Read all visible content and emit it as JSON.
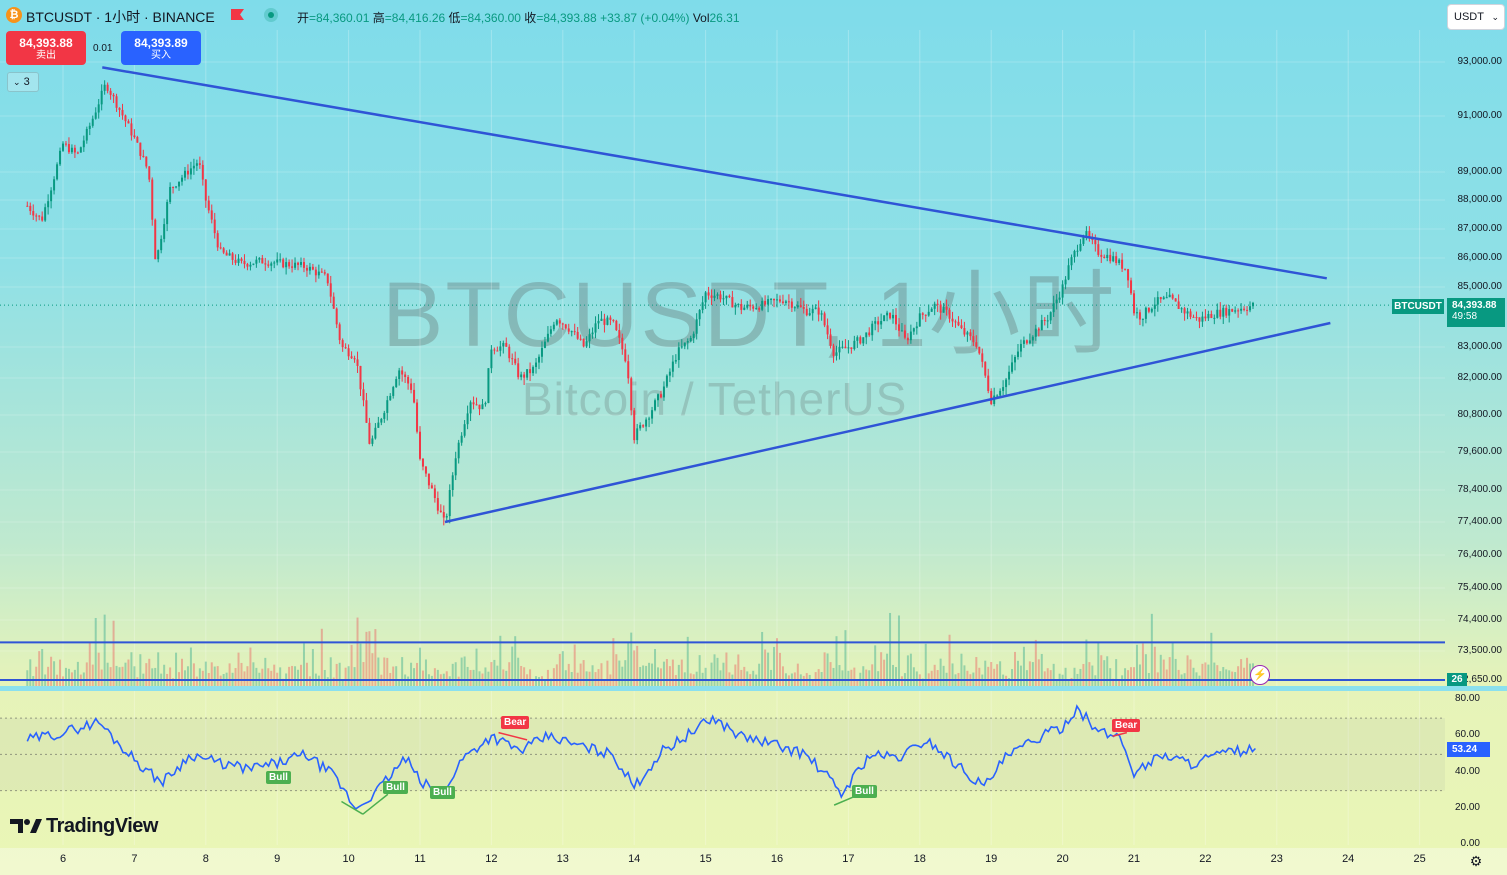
{
  "header": {
    "symbol_title": "BTCUSDT · 1小时 · BINANCE",
    "ohlc": {
      "open_label": "开",
      "open": "=84,360.01",
      "high_label": "高",
      "high": "=84,416.26",
      "low_label": "低",
      "low": "=84,360.00",
      "close_label": "收",
      "close": "=84,393.88",
      "change": "+33.87 (+0.04%)",
      "vol_label": "Vol",
      "vol": "26.31"
    },
    "sell_price": "84,393.88",
    "sell_label": "卖出",
    "spread": "0.01",
    "buy_price": "84,393.89",
    "buy_label": "买入",
    "indicators_toggle": "3",
    "currency_select": "USDT"
  },
  "watermark": {
    "line1": "BTCUSDT, 1小时",
    "line2": "Bitcoin / TetherUS"
  },
  "price_axis": {
    "labels": [
      "93,000.00",
      "91,000.00",
      "89,000.00",
      "88,000.00",
      "87,000.00",
      "86,000.00",
      "85,000.00",
      "83,000.00",
      "82,000.00",
      "80,800.00",
      "79,600.00",
      "78,400.00",
      "77,400.00",
      "76,400.00",
      "75,400.00",
      "74,400.00",
      "73,500.00",
      "72,650.00"
    ],
    "last_price_symbol": "BTCUSDT",
    "last_price": "84,393.88",
    "countdown": "49:58",
    "volume_tag": "26"
  },
  "rsi_axis": {
    "labels": [
      "80.00",
      "60.00",
      "40.00",
      "20.00",
      "0.00"
    ],
    "current": "53.24",
    "signals": [
      "Bull",
      "Bull",
      "Bull",
      "Bear",
      "Bull",
      "Bear"
    ]
  },
  "time_axis": {
    "labels": [
      "6",
      "7",
      "8",
      "9",
      "10",
      "11",
      "12",
      "13",
      "14",
      "15",
      "16",
      "17",
      "18",
      "19",
      "20",
      "21",
      "22",
      "23",
      "24",
      "25"
    ]
  },
  "branding": {
    "logo_text": "TradingView"
  },
  "colors": {
    "up": "#089981",
    "down": "#f23645",
    "trendline": "#2f54d6",
    "rsi": "#2962ff"
  },
  "chart_data": {
    "type": "candlestick",
    "symbol": "BTCUSDT",
    "interval": "1小时",
    "x_range_days": [
      "6",
      "25"
    ],
    "ylim": [
      72650,
      93500
    ],
    "close_path": [
      {
        "day": 5.5,
        "close": 87800
      },
      {
        "day": 5.7,
        "close": 87300
      },
      {
        "day": 5.85,
        "close": 88600
      },
      {
        "day": 6.0,
        "close": 90000
      },
      {
        "day": 6.2,
        "close": 89600
      },
      {
        "day": 6.4,
        "close": 90800
      },
      {
        "day": 6.6,
        "close": 92200
      },
      {
        "day": 6.8,
        "close": 91200
      },
      {
        "day": 7.0,
        "close": 90200
      },
      {
        "day": 7.2,
        "close": 89000
      },
      {
        "day": 7.3,
        "close": 85800
      },
      {
        "day": 7.5,
        "close": 88400
      },
      {
        "day": 7.7,
        "close": 88900
      },
      {
        "day": 7.9,
        "close": 89400
      },
      {
        "day": 8.0,
        "close": 88000
      },
      {
        "day": 8.2,
        "close": 86200
      },
      {
        "day": 8.5,
        "close": 85800
      },
      {
        "day": 8.8,
        "close": 85900
      },
      {
        "day": 9.1,
        "close": 85800
      },
      {
        "day": 9.4,
        "close": 85700
      },
      {
        "day": 9.7,
        "close": 85300
      },
      {
        "day": 9.9,
        "close": 83000
      },
      {
        "day": 10.1,
        "close": 82700
      },
      {
        "day": 10.3,
        "close": 79800
      },
      {
        "day": 10.5,
        "close": 81000
      },
      {
        "day": 10.7,
        "close": 82300
      },
      {
        "day": 10.9,
        "close": 81600
      },
      {
        "day": 11.0,
        "close": 79300
      },
      {
        "day": 11.2,
        "close": 78200
      },
      {
        "day": 11.35,
        "close": 77300
      },
      {
        "day": 11.5,
        "close": 79500
      },
      {
        "day": 11.7,
        "close": 81300
      },
      {
        "day": 11.9,
        "close": 81000
      },
      {
        "day": 12.0,
        "close": 83000
      },
      {
        "day": 12.2,
        "close": 83000
      },
      {
        "day": 12.4,
        "close": 82000
      },
      {
        "day": 12.6,
        "close": 82300
      },
      {
        "day": 12.8,
        "close": 83400
      },
      {
        "day": 12.9,
        "close": 84000
      },
      {
        "day": 13.1,
        "close": 83600
      },
      {
        "day": 13.3,
        "close": 83000
      },
      {
        "day": 13.5,
        "close": 83900
      },
      {
        "day": 13.7,
        "close": 83800
      },
      {
        "day": 13.9,
        "close": 82500
      },
      {
        "day": 14.0,
        "close": 80100
      },
      {
        "day": 14.2,
        "close": 80800
      },
      {
        "day": 14.4,
        "close": 81600
      },
      {
        "day": 14.6,
        "close": 82800
      },
      {
        "day": 14.8,
        "close": 83300
      },
      {
        "day": 15.0,
        "close": 84800
      },
      {
        "day": 15.2,
        "close": 84700
      },
      {
        "day": 15.5,
        "close": 84300
      },
      {
        "day": 15.8,
        "close": 84400
      },
      {
        "day": 16.1,
        "close": 84600
      },
      {
        "day": 16.4,
        "close": 84200
      },
      {
        "day": 16.6,
        "close": 84200
      },
      {
        "day": 16.8,
        "close": 82800
      },
      {
        "day": 17.0,
        "close": 83000
      },
      {
        "day": 17.2,
        "close": 83300
      },
      {
        "day": 17.4,
        "close": 83800
      },
      {
        "day": 17.6,
        "close": 84100
      },
      {
        "day": 17.8,
        "close": 83200
      },
      {
        "day": 18.0,
        "close": 84000
      },
      {
        "day": 18.2,
        "close": 84400
      },
      {
        "day": 18.4,
        "close": 84100
      },
      {
        "day": 18.6,
        "close": 83500
      },
      {
        "day": 18.8,
        "close": 83100
      },
      {
        "day": 19.0,
        "close": 81300
      },
      {
        "day": 19.2,
        "close": 81900
      },
      {
        "day": 19.4,
        "close": 83000
      },
      {
        "day": 19.6,
        "close": 83500
      },
      {
        "day": 19.8,
        "close": 84000
      },
      {
        "day": 20.0,
        "close": 85000
      },
      {
        "day": 20.1,
        "close": 85800
      },
      {
        "day": 20.3,
        "close": 86900
      },
      {
        "day": 20.5,
        "close": 86200
      },
      {
        "day": 20.7,
        "close": 86000
      },
      {
        "day": 20.9,
        "close": 85600
      },
      {
        "day": 21.0,
        "close": 84200
      },
      {
        "day": 21.1,
        "close": 84000
      },
      {
        "day": 21.3,
        "close": 84500
      },
      {
        "day": 21.5,
        "close": 84600
      },
      {
        "day": 21.7,
        "close": 84200
      },
      {
        "day": 21.9,
        "close": 83900
      },
      {
        "day": 22.1,
        "close": 84100
      },
      {
        "day": 22.3,
        "close": 84200
      },
      {
        "day": 22.5,
        "close": 84300
      },
      {
        "day": 22.7,
        "close": 84394
      }
    ],
    "trendlines": [
      {
        "name": "upper",
        "from": {
          "day": 6.55,
          "price": 92800
        },
        "to": {
          "day": 23.7,
          "price": 85300
        }
      },
      {
        "name": "lower",
        "from": {
          "day": 11.35,
          "price": 77400
        },
        "to": {
          "day": 23.75,
          "price": 83800
        }
      }
    ],
    "horizontal_lines": [
      73750,
      72650
    ],
    "rsi": {
      "ylim": [
        0,
        80
      ],
      "bands": [
        70,
        50,
        30
      ],
      "current": 53.24,
      "points": [
        {
          "day": 5.5,
          "v": 58
        },
        {
          "day": 6.0,
          "v": 62
        },
        {
          "day": 6.5,
          "v": 68
        },
        {
          "day": 6.8,
          "v": 55
        },
        {
          "day": 7.2,
          "v": 40
        },
        {
          "day": 7.4,
          "v": 35
        },
        {
          "day": 7.8,
          "v": 50
        },
        {
          "day": 8.2,
          "v": 45
        },
        {
          "day": 8.6,
          "v": 42
        },
        {
          "day": 9.0,
          "v": 45
        },
        {
          "day": 9.4,
          "v": 50
        },
        {
          "day": 9.8,
          "v": 38
        },
        {
          "day": 10.1,
          "v": 20
        },
        {
          "day": 10.4,
          "v": 30
        },
        {
          "day": 10.8,
          "v": 48
        },
        {
          "day": 11.0,
          "v": 35
        },
        {
          "day": 11.3,
          "v": 28
        },
        {
          "day": 11.6,
          "v": 48
        },
        {
          "day": 12.0,
          "v": 60
        },
        {
          "day": 12.4,
          "v": 52
        },
        {
          "day": 12.8,
          "v": 60
        },
        {
          "day": 13.2,
          "v": 55
        },
        {
          "day": 13.7,
          "v": 50
        },
        {
          "day": 14.0,
          "v": 32
        },
        {
          "day": 14.4,
          "v": 52
        },
        {
          "day": 14.8,
          "v": 62
        },
        {
          "day": 15.1,
          "v": 70
        },
        {
          "day": 15.5,
          "v": 60
        },
        {
          "day": 16.0,
          "v": 55
        },
        {
          "day": 16.4,
          "v": 50
        },
        {
          "day": 16.7,
          "v": 38
        },
        {
          "day": 16.9,
          "v": 28
        },
        {
          "day": 17.3,
          "v": 50
        },
        {
          "day": 17.7,
          "v": 48
        },
        {
          "day": 18.1,
          "v": 58
        },
        {
          "day": 18.5,
          "v": 45
        },
        {
          "day": 18.9,
          "v": 32
        },
        {
          "day": 19.2,
          "v": 48
        },
        {
          "day": 19.6,
          "v": 58
        },
        {
          "day": 20.0,
          "v": 65
        },
        {
          "day": 20.2,
          "v": 76
        },
        {
          "day": 20.5,
          "v": 62
        },
        {
          "day": 20.8,
          "v": 60
        },
        {
          "day": 21.0,
          "v": 40
        },
        {
          "day": 21.4,
          "v": 50
        },
        {
          "day": 21.8,
          "v": 45
        },
        {
          "day": 22.2,
          "v": 50
        },
        {
          "day": 22.7,
          "v": 53.24
        }
      ]
    },
    "volume": [
      4,
      6,
      5,
      8,
      12,
      9,
      6,
      5,
      11,
      7,
      6,
      14,
      5,
      4,
      6,
      3,
      5,
      7,
      4,
      6,
      5,
      10,
      8,
      15,
      9,
      7,
      18,
      12,
      8,
      16,
      6,
      5,
      7,
      9,
      6,
      8,
      5,
      4,
      10,
      6,
      5,
      7,
      4,
      6,
      8,
      5,
      12,
      6,
      5,
      4,
      7,
      5,
      6,
      4,
      5,
      9,
      6,
      5,
      8,
      7,
      6,
      5,
      7,
      10,
      6,
      5,
      4,
      6,
      9,
      7,
      5,
      13,
      8,
      7,
      6,
      10,
      12,
      7,
      5,
      4,
      6,
      5,
      4,
      5,
      3,
      4,
      3,
      4
    ]
  }
}
